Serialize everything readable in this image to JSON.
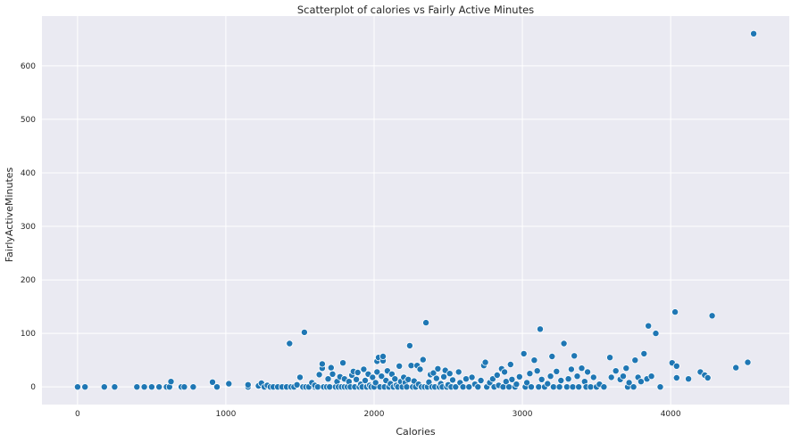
{
  "chart_data": {
    "type": "scatter",
    "title": "Scatterplot of calories vs Fairly Active Minutes",
    "xlabel": "Calories",
    "ylabel": "FairlyActiveMinutes",
    "xlim": [
      -240,
      4800
    ],
    "ylim": [
      -33,
      693
    ],
    "xticks": [
      0,
      1000,
      2000,
      3000,
      4000
    ],
    "yticks": [
      0,
      100,
      200,
      300,
      400,
      500,
      600
    ],
    "grid": true,
    "background": "#eaeaf2",
    "point_color": "#1f77b4",
    "points": [
      [
        0,
        0
      ],
      [
        50,
        0
      ],
      [
        180,
        0
      ],
      [
        250,
        0
      ],
      [
        400,
        0
      ],
      [
        450,
        0
      ],
      [
        500,
        0
      ],
      [
        550,
        0
      ],
      [
        600,
        0
      ],
      [
        620,
        0
      ],
      [
        630,
        10
      ],
      [
        700,
        0
      ],
      [
        720,
        0
      ],
      [
        780,
        0
      ],
      [
        910,
        9
      ],
      [
        940,
        0
      ],
      [
        1020,
        6
      ],
      [
        1150,
        0
      ],
      [
        1150,
        4
      ],
      [
        1220,
        2
      ],
      [
        1240,
        7
      ],
      [
        1260,
        0
      ],
      [
        1280,
        3
      ],
      [
        1300,
        0
      ],
      [
        1320,
        0
      ],
      [
        1350,
        0
      ],
      [
        1380,
        0
      ],
      [
        1410,
        0
      ],
      [
        1430,
        81
      ],
      [
        1440,
        0
      ],
      [
        1460,
        0
      ],
      [
        1480,
        4
      ],
      [
        1500,
        18
      ],
      [
        1520,
        0
      ],
      [
        1530,
        102
      ],
      [
        1540,
        0
      ],
      [
        1560,
        0
      ],
      [
        1580,
        8
      ],
      [
        1600,
        0
      ],
      [
        1600,
        3
      ],
      [
        1620,
        0
      ],
      [
        1630,
        23
      ],
      [
        1650,
        35
      ],
      [
        1650,
        43
      ],
      [
        1660,
        0
      ],
      [
        1680,
        0
      ],
      [
        1690,
        15
      ],
      [
        1700,
        0
      ],
      [
        1710,
        36
      ],
      [
        1720,
        24
      ],
      [
        1740,
        0
      ],
      [
        1750,
        10
      ],
      [
        1760,
        0
      ],
      [
        1770,
        19
      ],
      [
        1780,
        0
      ],
      [
        1790,
        45
      ],
      [
        1800,
        0
      ],
      [
        1800,
        15
      ],
      [
        1820,
        0
      ],
      [
        1830,
        10
      ],
      [
        1840,
        0
      ],
      [
        1850,
        22
      ],
      [
        1860,
        29
      ],
      [
        1870,
        0
      ],
      [
        1880,
        14
      ],
      [
        1890,
        27
      ],
      [
        1900,
        0
      ],
      [
        1910,
        5
      ],
      [
        1920,
        0
      ],
      [
        1930,
        33
      ],
      [
        1940,
        12
      ],
      [
        1950,
        0
      ],
      [
        1960,
        24
      ],
      [
        1970,
        3
      ],
      [
        1980,
        0
      ],
      [
        1990,
        18
      ],
      [
        2000,
        0
      ],
      [
        2010,
        8
      ],
      [
        2020,
        28
      ],
      [
        2020,
        48
      ],
      [
        2030,
        55
      ],
      [
        2040,
        0
      ],
      [
        2050,
        20
      ],
      [
        2060,
        49
      ],
      [
        2060,
        57
      ],
      [
        2070,
        0
      ],
      [
        2080,
        12
      ],
      [
        2090,
        30
      ],
      [
        2100,
        0
      ],
      [
        2110,
        6
      ],
      [
        2120,
        24
      ],
      [
        2130,
        0
      ],
      [
        2140,
        15
      ],
      [
        2150,
        3
      ],
      [
        2160,
        0
      ],
      [
        2170,
        39
      ],
      [
        2180,
        10
      ],
      [
        2190,
        0
      ],
      [
        2200,
        18
      ],
      [
        2210,
        8
      ],
      [
        2220,
        0
      ],
      [
        2230,
        14
      ],
      [
        2240,
        77
      ],
      [
        2250,
        40
      ],
      [
        2260,
        0
      ],
      [
        2270,
        11
      ],
      [
        2280,
        0
      ],
      [
        2290,
        40
      ],
      [
        2300,
        5
      ],
      [
        2310,
        33
      ],
      [
        2320,
        0
      ],
      [
        2330,
        51
      ],
      [
        2340,
        0
      ],
      [
        2350,
        120
      ],
      [
        2360,
        0
      ],
      [
        2370,
        9
      ],
      [
        2380,
        23
      ],
      [
        2390,
        0
      ],
      [
        2400,
        26
      ],
      [
        2410,
        0
      ],
      [
        2420,
        16
      ],
      [
        2430,
        34
      ],
      [
        2440,
        0
      ],
      [
        2450,
        6
      ],
      [
        2460,
        0
      ],
      [
        2470,
        19
      ],
      [
        2480,
        31
      ],
      [
        2490,
        0
      ],
      [
        2500,
        4
      ],
      [
        2510,
        25
      ],
      [
        2520,
        0
      ],
      [
        2530,
        13
      ],
      [
        2550,
        0
      ],
      [
        2570,
        28
      ],
      [
        2580,
        8
      ],
      [
        2600,
        0
      ],
      [
        2620,
        15
      ],
      [
        2640,
        0
      ],
      [
        2660,
        18
      ],
      [
        2680,
        5
      ],
      [
        2700,
        0
      ],
      [
        2720,
        12
      ],
      [
        2740,
        40
      ],
      [
        2750,
        46
      ],
      [
        2760,
        0
      ],
      [
        2780,
        8
      ],
      [
        2800,
        15
      ],
      [
        2810,
        0
      ],
      [
        2830,
        22
      ],
      [
        2840,
        3
      ],
      [
        2860,
        34
      ],
      [
        2870,
        0
      ],
      [
        2880,
        28
      ],
      [
        2890,
        10
      ],
      [
        2910,
        0
      ],
      [
        2920,
        42
      ],
      [
        2930,
        14
      ],
      [
        2950,
        0
      ],
      [
        2960,
        5
      ],
      [
        2980,
        19
      ],
      [
        3010,
        62
      ],
      [
        3020,
        0
      ],
      [
        3030,
        8
      ],
      [
        3050,
        25
      ],
      [
        3060,
        0
      ],
      [
        3080,
        50
      ],
      [
        3100,
        30
      ],
      [
        3110,
        0
      ],
      [
        3120,
        108
      ],
      [
        3130,
        14
      ],
      [
        3150,
        0
      ],
      [
        3170,
        6
      ],
      [
        3190,
        20
      ],
      [
        3200,
        57
      ],
      [
        3210,
        0
      ],
      [
        3230,
        29
      ],
      [
        3250,
        0
      ],
      [
        3260,
        12
      ],
      [
        3280,
        81
      ],
      [
        3300,
        0
      ],
      [
        3310,
        15
      ],
      [
        3330,
        33
      ],
      [
        3340,
        0
      ],
      [
        3350,
        58
      ],
      [
        3370,
        20
      ],
      [
        3380,
        0
      ],
      [
        3400,
        35
      ],
      [
        3420,
        10
      ],
      [
        3430,
        0
      ],
      [
        3440,
        28
      ],
      [
        3460,
        0
      ],
      [
        3480,
        18
      ],
      [
        3500,
        0
      ],
      [
        3520,
        5
      ],
      [
        3550,
        0
      ],
      [
        3590,
        55
      ],
      [
        3600,
        18
      ],
      [
        3630,
        30
      ],
      [
        3660,
        14
      ],
      [
        3680,
        20
      ],
      [
        3700,
        35
      ],
      [
        3710,
        0
      ],
      [
        3720,
        8
      ],
      [
        3750,
        0
      ],
      [
        3760,
        50
      ],
      [
        3780,
        18
      ],
      [
        3800,
        10
      ],
      [
        3820,
        62
      ],
      [
        3840,
        15
      ],
      [
        3850,
        114
      ],
      [
        3870,
        20
      ],
      [
        3900,
        100
      ],
      [
        3930,
        0
      ],
      [
        4010,
        45
      ],
      [
        4030,
        140
      ],
      [
        4040,
        17
      ],
      [
        4040,
        39
      ],
      [
        4120,
        15
      ],
      [
        4200,
        28
      ],
      [
        4230,
        22
      ],
      [
        4250,
        17
      ],
      [
        4280,
        133
      ],
      [
        4440,
        36
      ],
      [
        4520,
        46
      ],
      [
        4560,
        660
      ]
    ]
  }
}
